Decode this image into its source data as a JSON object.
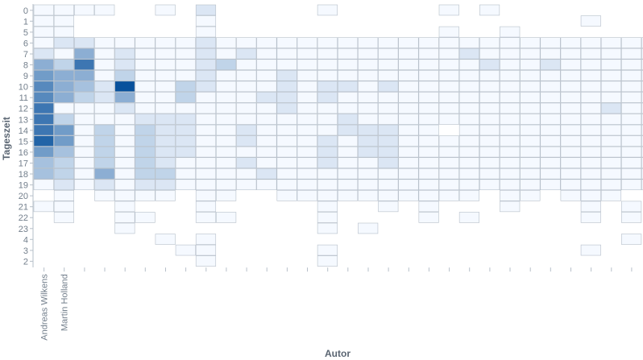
{
  "chart_data": {
    "type": "heatmap",
    "xlabel": "Autor",
    "ylabel": "Tageszeit",
    "x_tick_labels": [
      "Andreas Wilkens",
      "Martin Holland"
    ],
    "author_columns": 31,
    "y_categories": [
      "0",
      "1",
      "5",
      "6",
      "7",
      "8",
      "9",
      "10",
      "11",
      "12",
      "13",
      "14",
      "15",
      "16",
      "17",
      "18",
      "19",
      "20",
      "21",
      "22",
      "23",
      "4",
      "3",
      "2"
    ],
    "colors": {
      "low": "#f5f9ff",
      "high": "#08519c",
      "border": "#b6bfc9",
      "axis": "#b6bfc9",
      "text": "#737f8c"
    },
    "max_value": 10,
    "rows": [
      [
        1,
        1,
        1,
        1,
        0,
        0,
        1,
        0,
        2,
        0,
        0,
        0,
        0,
        0,
        1,
        0,
        0,
        0,
        0,
        0,
        1,
        0,
        1,
        0,
        0,
        0,
        0,
        0,
        0,
        0,
        0
      ],
      [
        1,
        1,
        0,
        0,
        0,
        0,
        0,
        0,
        1,
        0,
        0,
        0,
        0,
        0,
        0,
        0,
        0,
        0,
        0,
        0,
        0,
        0,
        0,
        0,
        0,
        0,
        0,
        1,
        0,
        0,
        0
      ],
      [
        1,
        1,
        0,
        0,
        0,
        0,
        0,
        0,
        1,
        0,
        0,
        0,
        0,
        0,
        0,
        0,
        0,
        0,
        0,
        0,
        1,
        0,
        0,
        1,
        0,
        0,
        0,
        0,
        0,
        0,
        0
      ],
      [
        1,
        2,
        2,
        1,
        1,
        1,
        1,
        1,
        2,
        1,
        1,
        1,
        1,
        1,
        1,
        1,
        1,
        1,
        1,
        1,
        1,
        1,
        1,
        1,
        1,
        1,
        1,
        1,
        1,
        1,
        1
      ],
      [
        2,
        1,
        5,
        1,
        2,
        1,
        1,
        1,
        2,
        1,
        2,
        1,
        1,
        1,
        1,
        1,
        1,
        1,
        1,
        1,
        1,
        2,
        1,
        1,
        1,
        1,
        1,
        1,
        1,
        1,
        1
      ],
      [
        5,
        3,
        8,
        1,
        2,
        1,
        1,
        1,
        2,
        3,
        1,
        1,
        1,
        1,
        1,
        1,
        1,
        1,
        1,
        1,
        1,
        1,
        2,
        1,
        1,
        2,
        1,
        1,
        1,
        1,
        1
      ],
      [
        6,
        5,
        5,
        1,
        3,
        1,
        1,
        1,
        2,
        1,
        1,
        1,
        2,
        1,
        1,
        1,
        1,
        1,
        1,
        1,
        1,
        1,
        1,
        1,
        1,
        1,
        1,
        1,
        1,
        1,
        1
      ],
      [
        7,
        5,
        4,
        2,
        10,
        1,
        1,
        3,
        2,
        1,
        1,
        1,
        2,
        1,
        2,
        2,
        1,
        2,
        1,
        1,
        1,
        1,
        1,
        1,
        1,
        1,
        1,
        1,
        1,
        1,
        1
      ],
      [
        7,
        5,
        3,
        2,
        5,
        1,
        1,
        3,
        1,
        1,
        1,
        2,
        2,
        1,
        2,
        1,
        1,
        1,
        1,
        1,
        1,
        1,
        1,
        1,
        1,
        1,
        1,
        1,
        1,
        1,
        1
      ],
      [
        8,
        1,
        1,
        1,
        2,
        1,
        1,
        1,
        1,
        1,
        1,
        1,
        2,
        1,
        1,
        1,
        1,
        1,
        1,
        1,
        1,
        1,
        1,
        1,
        1,
        1,
        1,
        1,
        2,
        1,
        1
      ],
      [
        8,
        3,
        1,
        1,
        1,
        2,
        2,
        2,
        1,
        1,
        1,
        1,
        1,
        1,
        1,
        2,
        1,
        1,
        1,
        1,
        1,
        1,
        1,
        1,
        1,
        1,
        1,
        1,
        1,
        1,
        1
      ],
      [
        8,
        6,
        1,
        3,
        1,
        3,
        2,
        2,
        1,
        1,
        2,
        1,
        1,
        1,
        1,
        2,
        2,
        2,
        1,
        1,
        0,
        1,
        1,
        1,
        1,
        1,
        1,
        1,
        1,
        1,
        1
      ],
      [
        9,
        6,
        1,
        3,
        1,
        3,
        2,
        2,
        1,
        1,
        2,
        1,
        1,
        1,
        2,
        1,
        2,
        2,
        1,
        1,
        1,
        1,
        1,
        1,
        1,
        1,
        1,
        1,
        1,
        1,
        1
      ],
      [
        6,
        4,
        1,
        3,
        1,
        3,
        2,
        2,
        1,
        1,
        1,
        1,
        1,
        1,
        2,
        1,
        2,
        2,
        1,
        1,
        1,
        1,
        1,
        1,
        1,
        1,
        1,
        1,
        1,
        1,
        1
      ],
      [
        4,
        3,
        1,
        3,
        1,
        3,
        2,
        1,
        1,
        1,
        2,
        1,
        1,
        1,
        2,
        1,
        1,
        2,
        1,
        1,
        1,
        1,
        1,
        1,
        1,
        1,
        1,
        1,
        1,
        1,
        1
      ],
      [
        4,
        3,
        1,
        5,
        1,
        3,
        3,
        1,
        1,
        1,
        1,
        2,
        1,
        1,
        1,
        1,
        1,
        1,
        1,
        1,
        1,
        1,
        1,
        1,
        1,
        1,
        1,
        1,
        1,
        1,
        1
      ],
      [
        1,
        2,
        1,
        2,
        1,
        2,
        2,
        1,
        1,
        1,
        1,
        1,
        1,
        1,
        1,
        1,
        1,
        1,
        1,
        1,
        1,
        1,
        1,
        1,
        1,
        1,
        1,
        1,
        1,
        1,
        1
      ],
      [
        0,
        1,
        0,
        1,
        1,
        1,
        1,
        0,
        1,
        1,
        0,
        0,
        1,
        1,
        1,
        1,
        1,
        1,
        1,
        1,
        1,
        1,
        0,
        1,
        1,
        0,
        1,
        1,
        1,
        0,
        0
      ],
      [
        1,
        1,
        0,
        0,
        1,
        0,
        0,
        0,
        1,
        0,
        0,
        0,
        0,
        0,
        1,
        0,
        0,
        1,
        0,
        1,
        0,
        0,
        0,
        1,
        0,
        0,
        0,
        1,
        0,
        1,
        0
      ],
      [
        0,
        1,
        0,
        0,
        1,
        1,
        0,
        0,
        1,
        1,
        0,
        0,
        0,
        0,
        1,
        0,
        0,
        0,
        0,
        1,
        0,
        1,
        0,
        0,
        0,
        0,
        0,
        1,
        0,
        1,
        0
      ],
      [
        0,
        0,
        0,
        0,
        1,
        0,
        0,
        0,
        0,
        0,
        0,
        0,
        0,
        0,
        1,
        0,
        1,
        0,
        0,
        0,
        0,
        0,
        0,
        0,
        0,
        0,
        0,
        0,
        0,
        0,
        0
      ],
      [
        0,
        0,
        0,
        0,
        0,
        0,
        1,
        0,
        1,
        0,
        0,
        0,
        0,
        0,
        0,
        0,
        0,
        0,
        0,
        0,
        0,
        0,
        0,
        0,
        0,
        0,
        0,
        0,
        0,
        1,
        0
      ],
      [
        0,
        0,
        0,
        0,
        0,
        0,
        0,
        1,
        1,
        0,
        0,
        0,
        0,
        0,
        1,
        0,
        0,
        0,
        0,
        0,
        0,
        0,
        0,
        0,
        0,
        0,
        0,
        1,
        0,
        0,
        0
      ],
      [
        0,
        0,
        0,
        0,
        0,
        0,
        0,
        0,
        1,
        0,
        0,
        0,
        0,
        0,
        1,
        0,
        0,
        0,
        0,
        0,
        0,
        0,
        0,
        0,
        0,
        0,
        0,
        0,
        0,
        0,
        0
      ]
    ]
  }
}
